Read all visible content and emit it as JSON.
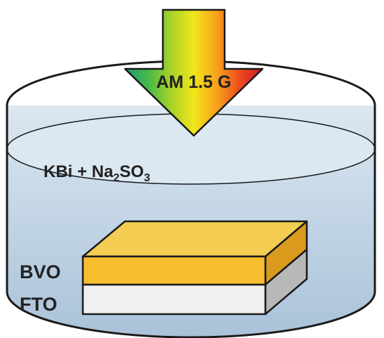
{
  "illumination": {
    "label": "AM 1.5 G",
    "spectrum_colors": [
      "#1f9a7a",
      "#46b84a",
      "#a6d22a",
      "#f2e61a",
      "#f7a21a",
      "#ef4b1e",
      "#d0132a"
    ]
  },
  "electrolyte": {
    "label_prefix": "KBi + Na",
    "subscript_1": "2",
    "label_mid": "SO",
    "subscript_2": "3"
  },
  "layers": {
    "top_label": "BVO",
    "bottom_label": "FTO"
  },
  "colors": {
    "outline": "#1a1a1a",
    "water_light": "#dbe7f1",
    "water_dark": "#a8c1d8",
    "bvo_top": "#f4cd52",
    "bvo_front": "#f6bd2e",
    "bvo_side": "#d99a1d",
    "fto_front": "#f0f0f0",
    "fto_side": "#b8b8b8"
  }
}
